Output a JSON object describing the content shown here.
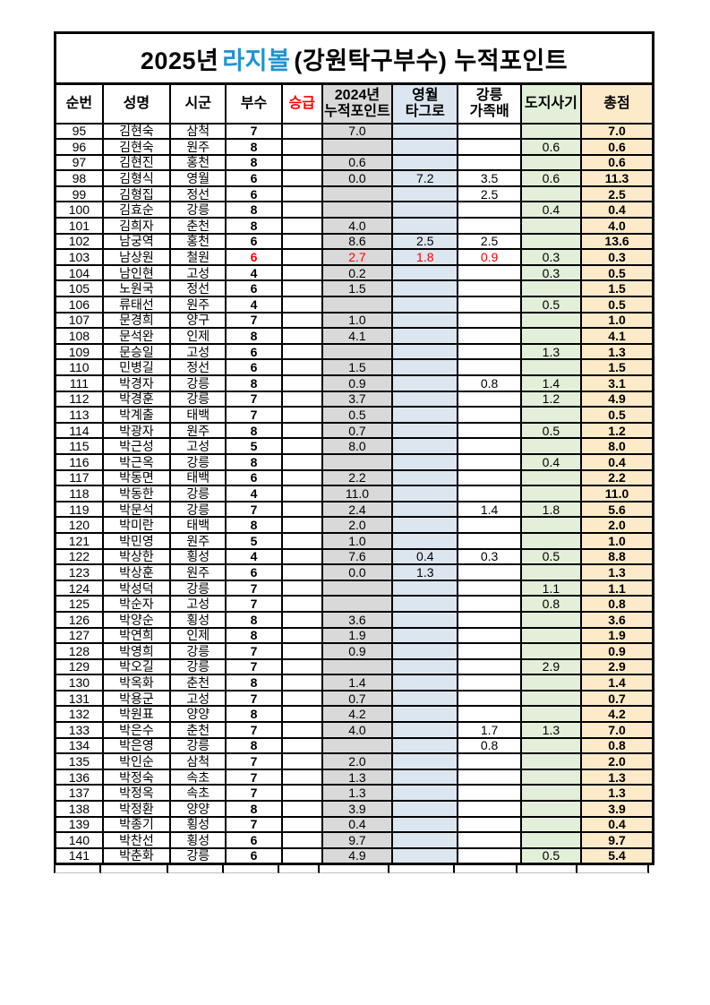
{
  "title": {
    "part1": "2025년",
    "highlight": "라지볼",
    "part2": "(강원탁구부수) 누적포인트"
  },
  "colors": {
    "accent_blue": "#1e95d4",
    "red": "#ff0000",
    "column_gray": "#d9d9d9",
    "column_blue": "#dce6f1",
    "column_green": "#e2efd9",
    "column_orange": "#fdeac9",
    "border_black": "#000000"
  },
  "table": {
    "headers": {
      "no": "순번",
      "name": "성명",
      "city": "시군",
      "division": "부수",
      "promotion": "승급",
      "p2024_line1": "2024년",
      "p2024_line2": "누적포인트",
      "yeongwol_line1": "영월",
      "yeongwol_line2": "타그로",
      "gangneung_line1": "강릉",
      "gangneung_line2": "가족배",
      "governor": "도지사기",
      "total": "총점"
    },
    "promotion_highlight": {
      "row_no": "103",
      "fields": [
        "division",
        "p2024",
        "yeongwol",
        "gangneung"
      ]
    },
    "rows": [
      [
        "95",
        "김현숙",
        "삼척",
        "7",
        "",
        "7.0",
        "",
        "",
        "",
        "7.0"
      ],
      [
        "96",
        "김현숙",
        "원주",
        "8",
        "",
        "",
        "",
        "",
        "0.6",
        "0.6"
      ],
      [
        "97",
        "김현진",
        "홍천",
        "8",
        "",
        "0.6",
        "",
        "",
        "",
        "0.6"
      ],
      [
        "98",
        "김형식",
        "영월",
        "6",
        "",
        "0.0",
        "7.2",
        "3.5",
        "0.6",
        "11.3"
      ],
      [
        "99",
        "김형집",
        "정선",
        "6",
        "",
        "",
        "",
        "2.5",
        "",
        "2.5"
      ],
      [
        "100",
        "김효순",
        "강릉",
        "8",
        "",
        "",
        "",
        "",
        "0.4",
        "0.4"
      ],
      [
        "101",
        "김희자",
        "춘천",
        "8",
        "",
        "4.0",
        "",
        "",
        "",
        "4.0"
      ],
      [
        "102",
        "남궁역",
        "홍천",
        "6",
        "",
        "8.6",
        "2.5",
        "2.5",
        "",
        "13.6"
      ],
      [
        "103",
        "남상원",
        "철원",
        "6",
        "",
        "2.7",
        "1.8",
        "0.9",
        "0.3",
        "0.3"
      ],
      [
        "104",
        "남인현",
        "고성",
        "4",
        "",
        "0.2",
        "",
        "",
        "0.3",
        "0.5"
      ],
      [
        "105",
        "노원국",
        "정선",
        "6",
        "",
        "1.5",
        "",
        "",
        "",
        "1.5"
      ],
      [
        "106",
        "류태선",
        "원주",
        "4",
        "",
        "",
        "",
        "",
        "0.5",
        "0.5"
      ],
      [
        "107",
        "문경희",
        "양구",
        "7",
        "",
        "1.0",
        "",
        "",
        "",
        "1.0"
      ],
      [
        "108",
        "문석완",
        "인제",
        "8",
        "",
        "4.1",
        "",
        "",
        "",
        "4.1"
      ],
      [
        "109",
        "문승일",
        "고성",
        "6",
        "",
        "",
        "",
        "",
        "1.3",
        "1.3"
      ],
      [
        "110",
        "민병길",
        "정선",
        "6",
        "",
        "1.5",
        "",
        "",
        "",
        "1.5"
      ],
      [
        "111",
        "박경자",
        "강릉",
        "8",
        "",
        "0.9",
        "",
        "0.8",
        "1.4",
        "3.1"
      ],
      [
        "112",
        "박경훈",
        "강릉",
        "7",
        "",
        "3.7",
        "",
        "",
        "1.2",
        "4.9"
      ],
      [
        "113",
        "박계출",
        "태백",
        "7",
        "",
        "0.5",
        "",
        "",
        "",
        "0.5"
      ],
      [
        "114",
        "박광자",
        "원주",
        "8",
        "",
        "0.7",
        "",
        "",
        "0.5",
        "1.2"
      ],
      [
        "115",
        "박근성",
        "고성",
        "5",
        "",
        "8.0",
        "",
        "",
        "",
        "8.0"
      ],
      [
        "116",
        "박근옥",
        "강릉",
        "8",
        "",
        "",
        "",
        "",
        "0.4",
        "0.4"
      ],
      [
        "117",
        "박동면",
        "태백",
        "6",
        "",
        "2.2",
        "",
        "",
        "",
        "2.2"
      ],
      [
        "118",
        "박동한",
        "강릉",
        "4",
        "",
        "11.0",
        "",
        "",
        "",
        "11.0"
      ],
      [
        "119",
        "박문석",
        "강릉",
        "7",
        "",
        "2.4",
        "",
        "1.4",
        "1.8",
        "5.6"
      ],
      [
        "120",
        "박미란",
        "태백",
        "8",
        "",
        "2.0",
        "",
        "",
        "",
        "2.0"
      ],
      [
        "121",
        "박민영",
        "원주",
        "5",
        "",
        "1.0",
        "",
        "",
        "",
        "1.0"
      ],
      [
        "122",
        "박상한",
        "횡성",
        "4",
        "",
        "7.6",
        "0.4",
        "0.3",
        "0.5",
        "8.8"
      ],
      [
        "123",
        "박상훈",
        "원주",
        "6",
        "",
        "0.0",
        "1.3",
        "",
        "",
        "1.3"
      ],
      [
        "124",
        "박성덕",
        "강릉",
        "7",
        "",
        "",
        "",
        "",
        "1.1",
        "1.1"
      ],
      [
        "125",
        "박순자",
        "고성",
        "7",
        "",
        "",
        "",
        "",
        "0.8",
        "0.8"
      ],
      [
        "126",
        "박양순",
        "횡성",
        "8",
        "",
        "3.6",
        "",
        "",
        "",
        "3.6"
      ],
      [
        "127",
        "박연희",
        "인제",
        "8",
        "",
        "1.9",
        "",
        "",
        "",
        "1.9"
      ],
      [
        "128",
        "박영희",
        "강릉",
        "7",
        "",
        "0.9",
        "",
        "",
        "",
        "0.9"
      ],
      [
        "129",
        "박오길",
        "강릉",
        "7",
        "",
        "",
        "",
        "",
        "2.9",
        "2.9"
      ],
      [
        "130",
        "박옥화",
        "춘천",
        "8",
        "",
        "1.4",
        "",
        "",
        "",
        "1.4"
      ],
      [
        "131",
        "박용군",
        "고성",
        "7",
        "",
        "0.7",
        "",
        "",
        "",
        "0.7"
      ],
      [
        "132",
        "박원표",
        "양양",
        "8",
        "",
        "4.2",
        "",
        "",
        "",
        "4.2"
      ],
      [
        "133",
        "박은수",
        "춘천",
        "7",
        "",
        "4.0",
        "",
        "1.7",
        "1.3",
        "7.0"
      ],
      [
        "134",
        "박은영",
        "강릉",
        "8",
        "",
        "",
        "",
        "0.8",
        "",
        "0.8"
      ],
      [
        "135",
        "박인순",
        "삼척",
        "7",
        "",
        "2.0",
        "",
        "",
        "",
        "2.0"
      ],
      [
        "136",
        "박정숙",
        "속초",
        "7",
        "",
        "1.3",
        "",
        "",
        "",
        "1.3"
      ],
      [
        "137",
        "박정옥",
        "속초",
        "7",
        "",
        "1.3",
        "",
        "",
        "",
        "1.3"
      ],
      [
        "138",
        "박정환",
        "양양",
        "8",
        "",
        "3.9",
        "",
        "",
        "",
        "3.9"
      ],
      [
        "139",
        "박종기",
        "횡성",
        "7",
        "",
        "0.4",
        "",
        "",
        "",
        "0.4"
      ],
      [
        "140",
        "박찬선",
        "횡성",
        "6",
        "",
        "9.7",
        "",
        "",
        "",
        "9.7"
      ],
      [
        "141",
        "박춘화",
        "강릉",
        "6",
        "",
        "4.9",
        "",
        "",
        "0.5",
        "5.4"
      ]
    ]
  }
}
